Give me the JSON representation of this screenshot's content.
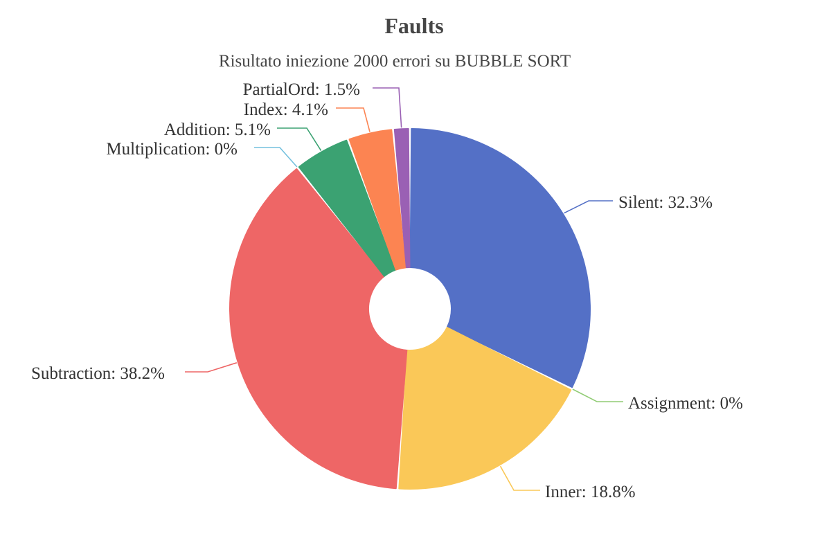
{
  "chart_data": {
    "type": "pie",
    "title": "Faults",
    "subtitle": "Risultato iniezione 2000 errori su BUBBLE SORT",
    "slices": [
      {
        "name": "Silent",
        "value": 32.3,
        "label": "Silent: 32.3%",
        "color": "#5470c6"
      },
      {
        "name": "Assignment",
        "value": 0,
        "label": "Assignment: 0%",
        "color": "#91cc75"
      },
      {
        "name": "Inner",
        "value": 18.8,
        "label": "Inner: 18.8%",
        "color": "#fac858"
      },
      {
        "name": "Subtraction",
        "value": 38.2,
        "label": "Subtraction: 38.2%",
        "color": "#ee6666"
      },
      {
        "name": "Multiplication",
        "value": 0,
        "label": "Multiplication: 0%",
        "color": "#73c0de"
      },
      {
        "name": "Addition",
        "value": 5.1,
        "label": "Addition: 5.1%",
        "color": "#3ba272"
      },
      {
        "name": "Index",
        "value": 4.1,
        "label": "Index: 4.1%",
        "color": "#fc8452"
      },
      {
        "name": "PartialOrd",
        "value": 1.5,
        "label": "PartialOrd: 1.5%",
        "color": "#9a60b4"
      }
    ]
  }
}
